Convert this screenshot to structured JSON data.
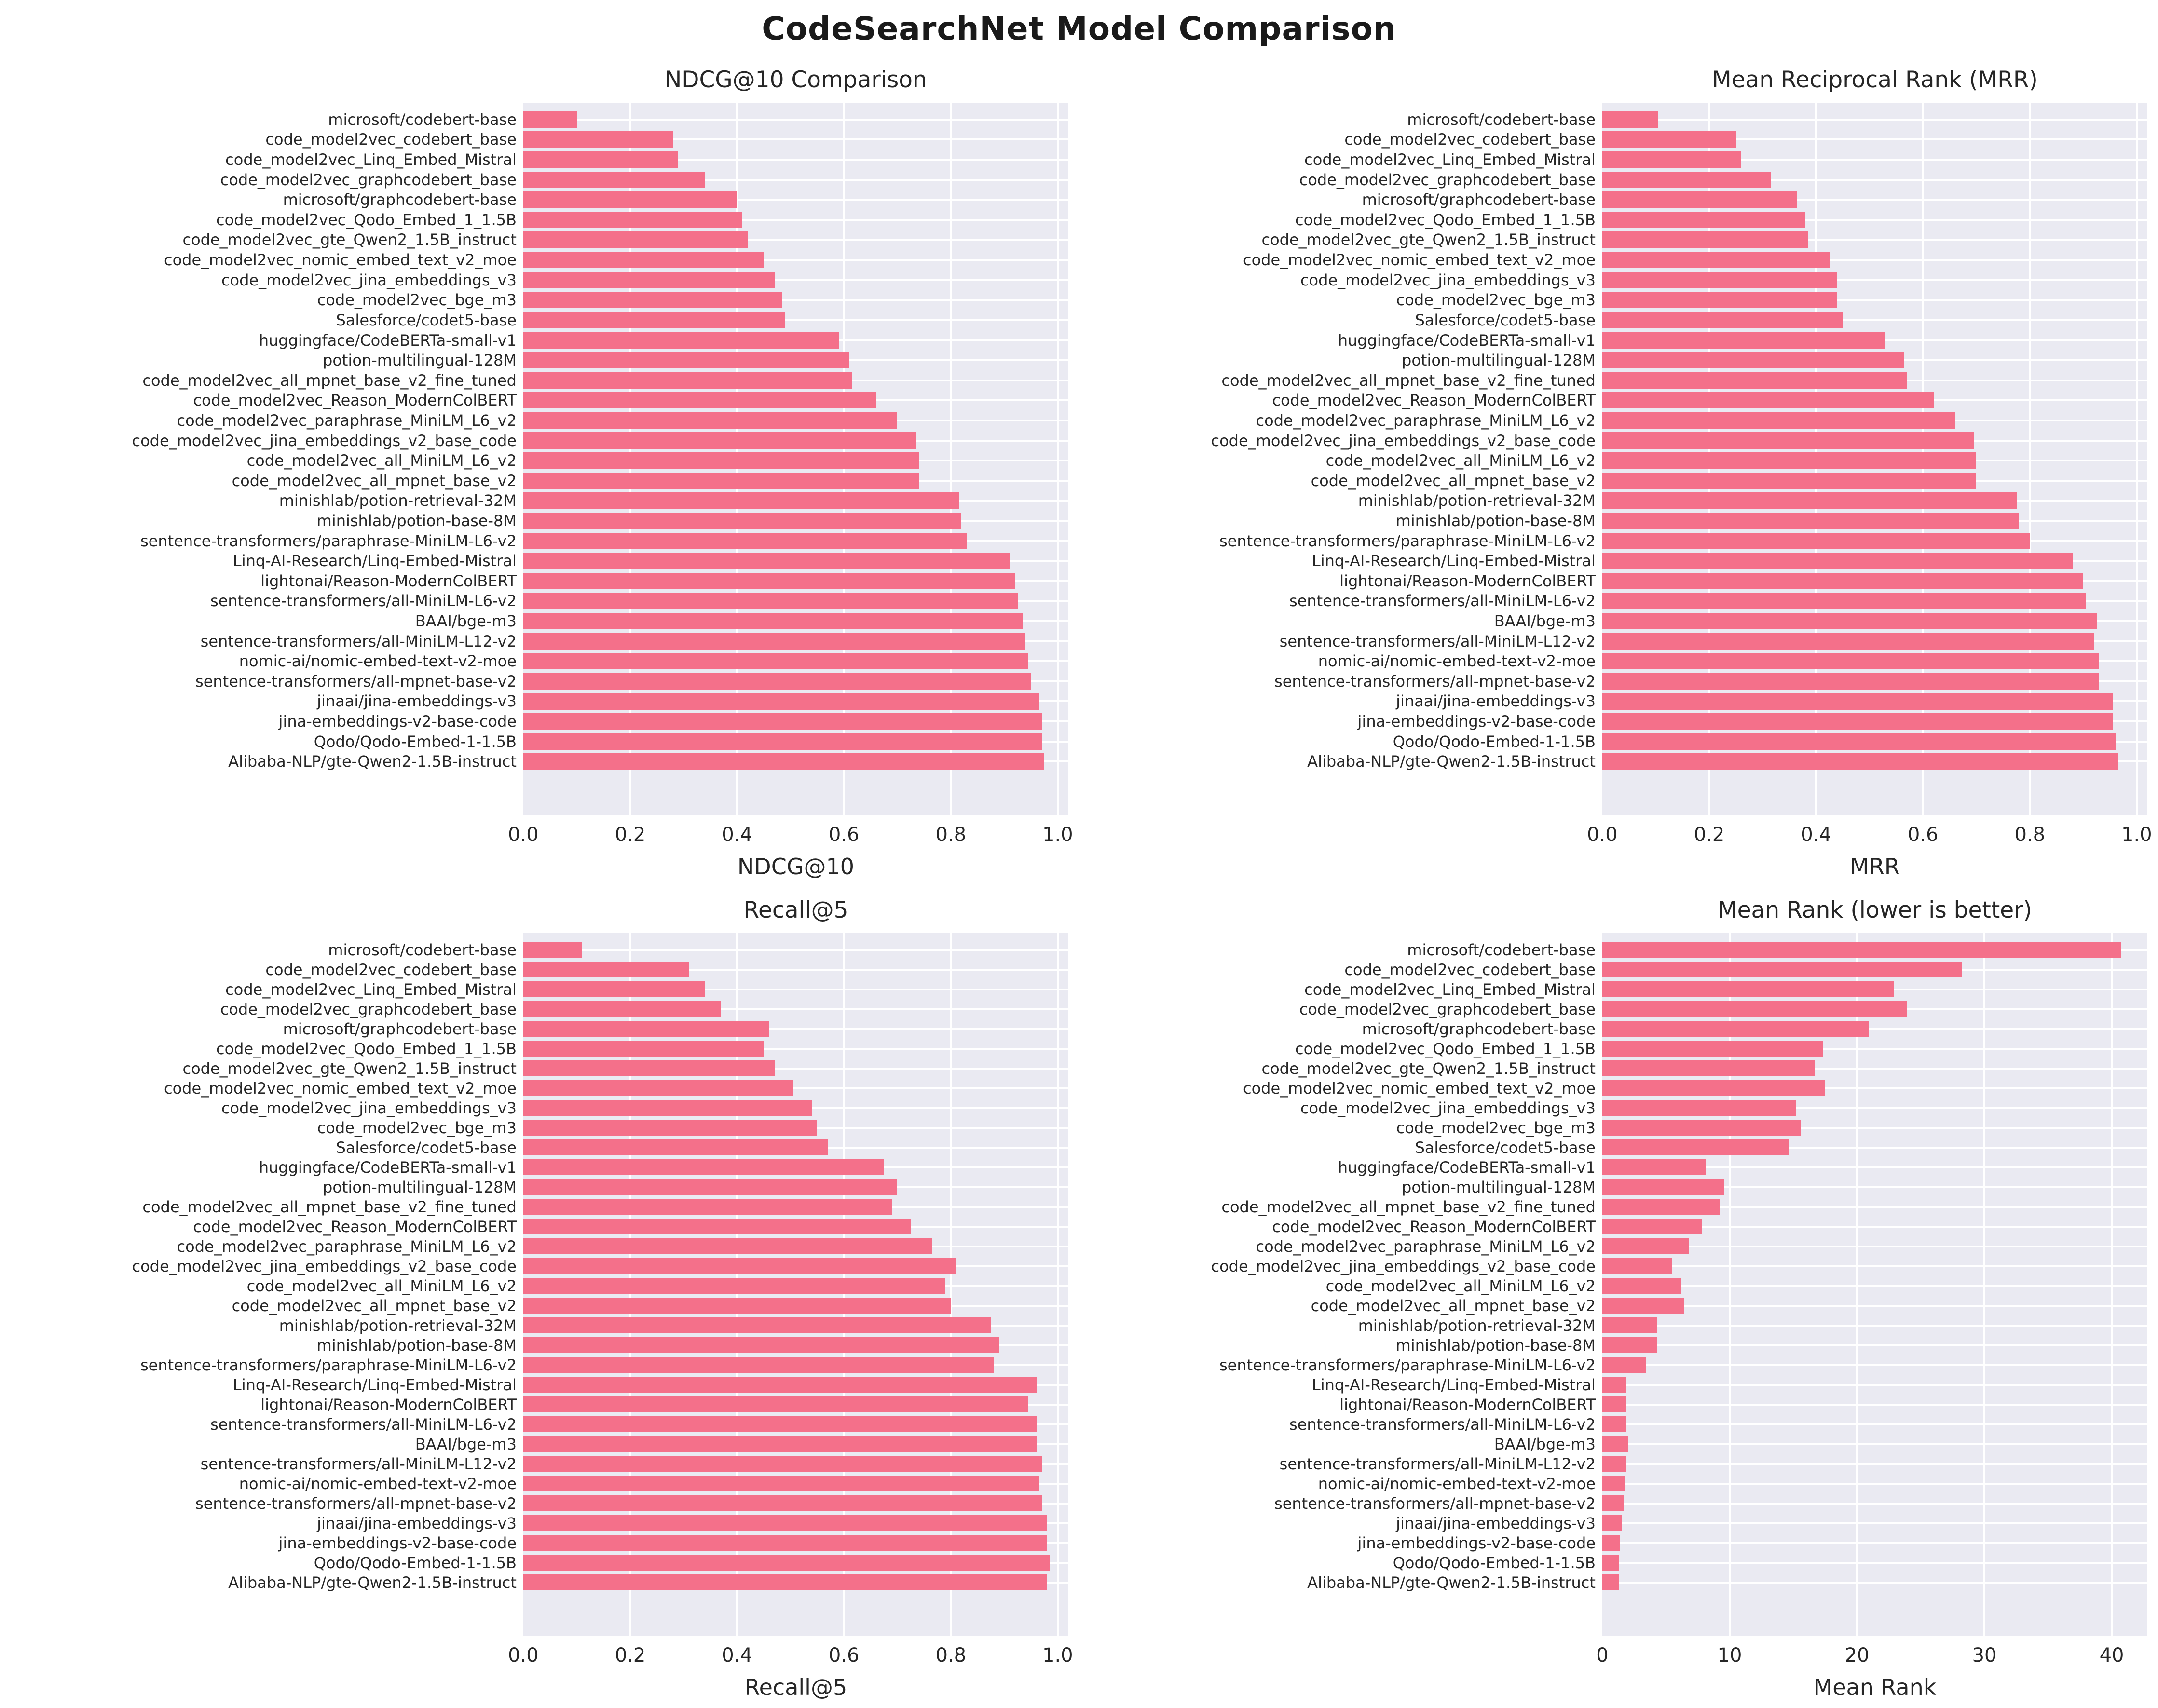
{
  "title": "CodeSearchNet Model Comparison",
  "colors": {
    "bar": "#f4708a",
    "plot_background": "#eaeaf2",
    "gridline": "#ffffff",
    "text": "#262626",
    "title_text": "#1a1a1a",
    "figure_background": "#ffffff"
  },
  "models": [
    "microsoft/codebert-base",
    "code_model2vec_codebert_base",
    "code_model2vec_Linq_Embed_Mistral",
    "code_model2vec_graphcodebert_base",
    "microsoft/graphcodebert-base",
    "code_model2vec_Qodo_Embed_1_1.5B",
    "code_model2vec_gte_Qwen2_1.5B_instruct",
    "code_model2vec_nomic_embed_text_v2_moe",
    "code_model2vec_jina_embeddings_v3",
    "code_model2vec_bge_m3",
    "Salesforce/codet5-base",
    "huggingface/CodeBERTa-small-v1",
    "potion-multilingual-128M",
    "code_model2vec_all_mpnet_base_v2_fine_tuned",
    "code_model2vec_Reason_ModernColBERT",
    "code_model2vec_paraphrase_MiniLM_L6_v2",
    "code_model2vec_jina_embeddings_v2_base_code",
    "code_model2vec_all_MiniLM_L6_v2",
    "code_model2vec_all_mpnet_base_v2",
    "minishlab/potion-retrieval-32M",
    "minishlab/potion-base-8M",
    "sentence-transformers/paraphrase-MiniLM-L6-v2",
    "Linq-AI-Research/Linq-Embed-Mistral",
    "lightonai/Reason-ModernColBERT",
    "sentence-transformers/all-MiniLM-L6-v2",
    "BAAI/bge-m3",
    "sentence-transformers/all-MiniLM-L12-v2",
    "nomic-ai/nomic-embed-text-v2-moe",
    "sentence-transformers/all-mpnet-base-v2",
    "jinaai/jina-embeddings-v3",
    "jina-embeddings-v2-base-code",
    "Qodo/Qodo-Embed-1-1.5B",
    "Alibaba-NLP/gte-Qwen2-1.5B-instruct"
  ],
  "chart_data": [
    {
      "type": "bar",
      "orientation": "horizontal",
      "title": "NDCG@10 Comparison",
      "xlabel": "NDCG@10",
      "xlim": [
        0,
        1.02
      ],
      "xticks": [
        0,
        0.2,
        0.4,
        0.6,
        0.8,
        1.0
      ],
      "xtick_labels": [
        "0.0",
        "0.2",
        "0.4",
        "0.6",
        "0.8",
        "1.0"
      ],
      "grid": true,
      "legend": false,
      "categories": [
        "microsoft/codebert-base",
        "code_model2vec_codebert_base",
        "code_model2vec_Linq_Embed_Mistral",
        "code_model2vec_graphcodebert_base",
        "microsoft/graphcodebert-base",
        "code_model2vec_Qodo_Embed_1_1.5B",
        "code_model2vec_gte_Qwen2_1.5B_instruct",
        "code_model2vec_nomic_embed_text_v2_moe",
        "code_model2vec_jina_embeddings_v3",
        "code_model2vec_bge_m3",
        "Salesforce/codet5-base",
        "huggingface/CodeBERTa-small-v1",
        "potion-multilingual-128M",
        "code_model2vec_all_mpnet_base_v2_fine_tuned",
        "code_model2vec_Reason_ModernColBERT",
        "code_model2vec_paraphrase_MiniLM_L6_v2",
        "code_model2vec_jina_embeddings_v2_base_code",
        "code_model2vec_all_MiniLM_L6_v2",
        "code_model2vec_all_mpnet_base_v2",
        "minishlab/potion-retrieval-32M",
        "minishlab/potion-base-8M",
        "sentence-transformers/paraphrase-MiniLM-L6-v2",
        "Linq-AI-Research/Linq-Embed-Mistral",
        "lightonai/Reason-ModernColBERT",
        "sentence-transformers/all-MiniLM-L6-v2",
        "BAAI/bge-m3",
        "sentence-transformers/all-MiniLM-L12-v2",
        "nomic-ai/nomic-embed-text-v2-moe",
        "sentence-transformers/all-mpnet-base-v2",
        "jinaai/jina-embeddings-v3",
        "jina-embeddings-v2-base-code",
        "Qodo/Qodo-Embed-1-1.5B",
        "Alibaba-NLP/gte-Qwen2-1.5B-instruct"
      ],
      "values": [
        0.1,
        0.28,
        0.29,
        0.34,
        0.4,
        0.41,
        0.42,
        0.45,
        0.47,
        0.485,
        0.49,
        0.59,
        0.61,
        0.615,
        0.66,
        0.7,
        0.735,
        0.74,
        0.74,
        0.815,
        0.82,
        0.83,
        0.91,
        0.92,
        0.925,
        0.935,
        0.94,
        0.945,
        0.95,
        0.965,
        0.97,
        0.97,
        0.975
      ]
    },
    {
      "type": "bar",
      "orientation": "horizontal",
      "title": "Mean Reciprocal Rank (MRR)",
      "xlabel": "MRR",
      "xlim": [
        0,
        1.02
      ],
      "xticks": [
        0,
        0.2,
        0.4,
        0.6,
        0.8,
        1.0
      ],
      "xtick_labels": [
        "0.0",
        "0.2",
        "0.4",
        "0.6",
        "0.8",
        "1.0"
      ],
      "grid": true,
      "legend": false,
      "categories": [
        "microsoft/codebert-base",
        "code_model2vec_codebert_base",
        "code_model2vec_Linq_Embed_Mistral",
        "code_model2vec_graphcodebert_base",
        "microsoft/graphcodebert-base",
        "code_model2vec_Qodo_Embed_1_1.5B",
        "code_model2vec_gte_Qwen2_1.5B_instruct",
        "code_model2vec_nomic_embed_text_v2_moe",
        "code_model2vec_jina_embeddings_v3",
        "code_model2vec_bge_m3",
        "Salesforce/codet5-base",
        "huggingface/CodeBERTa-small-v1",
        "potion-multilingual-128M",
        "code_model2vec_all_mpnet_base_v2_fine_tuned",
        "code_model2vec_Reason_ModernColBERT",
        "code_model2vec_paraphrase_MiniLM_L6_v2",
        "code_model2vec_jina_embeddings_v2_base_code",
        "code_model2vec_all_MiniLM_L6_v2",
        "code_model2vec_all_mpnet_base_v2",
        "minishlab/potion-retrieval-32M",
        "minishlab/potion-base-8M",
        "sentence-transformers/paraphrase-MiniLM-L6-v2",
        "Linq-AI-Research/Linq-Embed-Mistral",
        "lightonai/Reason-ModernColBERT",
        "sentence-transformers/all-MiniLM-L6-v2",
        "BAAI/bge-m3",
        "sentence-transformers/all-MiniLM-L12-v2",
        "nomic-ai/nomic-embed-text-v2-moe",
        "sentence-transformers/all-mpnet-base-v2",
        "jinaai/jina-embeddings-v3",
        "jina-embeddings-v2-base-code",
        "Qodo/Qodo-Embed-1-1.5B",
        "Alibaba-NLP/gte-Qwen2-1.5B-instruct"
      ],
      "values": [
        0.105,
        0.25,
        0.26,
        0.315,
        0.365,
        0.38,
        0.385,
        0.425,
        0.44,
        0.44,
        0.45,
        0.53,
        0.565,
        0.57,
        0.62,
        0.66,
        0.695,
        0.7,
        0.7,
        0.775,
        0.78,
        0.8,
        0.88,
        0.9,
        0.905,
        0.925,
        0.92,
        0.93,
        0.93,
        0.955,
        0.955,
        0.96,
        0.965
      ]
    },
    {
      "type": "bar",
      "orientation": "horizontal",
      "title": "Recall@5",
      "xlabel": "Recall@5",
      "xlim": [
        0,
        1.02
      ],
      "xticks": [
        0,
        0.2,
        0.4,
        0.6,
        0.8,
        1.0
      ],
      "xtick_labels": [
        "0.0",
        "0.2",
        "0.4",
        "0.6",
        "0.8",
        "1.0"
      ],
      "grid": true,
      "legend": false,
      "categories": [
        "microsoft/codebert-base",
        "code_model2vec_codebert_base",
        "code_model2vec_Linq_Embed_Mistral",
        "code_model2vec_graphcodebert_base",
        "microsoft/graphcodebert-base",
        "code_model2vec_Qodo_Embed_1_1.5B",
        "code_model2vec_gte_Qwen2_1.5B_instruct",
        "code_model2vec_nomic_embed_text_v2_moe",
        "code_model2vec_jina_embeddings_v3",
        "code_model2vec_bge_m3",
        "Salesforce/codet5-base",
        "huggingface/CodeBERTa-small-v1",
        "potion-multilingual-128M",
        "code_model2vec_all_mpnet_base_v2_fine_tuned",
        "code_model2vec_Reason_ModernColBERT",
        "code_model2vec_paraphrase_MiniLM_L6_v2",
        "code_model2vec_jina_embeddings_v2_base_code",
        "code_model2vec_all_MiniLM_L6_v2",
        "code_model2vec_all_mpnet_base_v2",
        "minishlab/potion-retrieval-32M",
        "minishlab/potion-base-8M",
        "sentence-transformers/paraphrase-MiniLM-L6-v2",
        "Linq-AI-Research/Linq-Embed-Mistral",
        "lightonai/Reason-ModernColBERT",
        "sentence-transformers/all-MiniLM-L6-v2",
        "BAAI/bge-m3",
        "sentence-transformers/all-MiniLM-L12-v2",
        "nomic-ai/nomic-embed-text-v2-moe",
        "sentence-transformers/all-mpnet-base-v2",
        "jinaai/jina-embeddings-v3",
        "jina-embeddings-v2-base-code",
        "Qodo/Qodo-Embed-1-1.5B",
        "Alibaba-NLP/gte-Qwen2-1.5B-instruct"
      ],
      "values": [
        0.11,
        0.31,
        0.34,
        0.37,
        0.46,
        0.45,
        0.47,
        0.505,
        0.54,
        0.55,
        0.57,
        0.675,
        0.7,
        0.69,
        0.725,
        0.765,
        0.81,
        0.79,
        0.8,
        0.875,
        0.89,
        0.88,
        0.96,
        0.945,
        0.96,
        0.96,
        0.97,
        0.965,
        0.97,
        0.98,
        0.98,
        0.985,
        0.98
      ]
    },
    {
      "type": "bar",
      "orientation": "horizontal",
      "title": "Mean Rank (lower is better)",
      "xlabel": "Mean Rank",
      "xlim": [
        0,
        42.8
      ],
      "xticks": [
        0,
        10,
        20,
        30,
        40
      ],
      "xtick_labels": [
        "0",
        "10",
        "20",
        "30",
        "40"
      ],
      "grid": true,
      "legend": false,
      "categories": [
        "microsoft/codebert-base",
        "code_model2vec_codebert_base",
        "code_model2vec_Linq_Embed_Mistral",
        "code_model2vec_graphcodebert_base",
        "microsoft/graphcodebert-base",
        "code_model2vec_Qodo_Embed_1_1.5B",
        "code_model2vec_gte_Qwen2_1.5B_instruct",
        "code_model2vec_nomic_embed_text_v2_moe",
        "code_model2vec_jina_embeddings_v3",
        "code_model2vec_bge_m3",
        "Salesforce/codet5-base",
        "huggingface/CodeBERTa-small-v1",
        "potion-multilingual-128M",
        "code_model2vec_all_mpnet_base_v2_fine_tuned",
        "code_model2vec_Reason_ModernColBERT",
        "code_model2vec_paraphrase_MiniLM_L6_v2",
        "code_model2vec_jina_embeddings_v2_base_code",
        "code_model2vec_all_MiniLM_L6_v2",
        "code_model2vec_all_mpnet_base_v2",
        "minishlab/potion-retrieval-32M",
        "minishlab/potion-base-8M",
        "sentence-transformers/paraphrase-MiniLM-L6-v2",
        "Linq-AI-Research/Linq-Embed-Mistral",
        "lightonai/Reason-ModernColBERT",
        "sentence-transformers/all-MiniLM-L6-v2",
        "BAAI/bge-m3",
        "sentence-transformers/all-MiniLM-L12-v2",
        "nomic-ai/nomic-embed-text-v2-moe",
        "sentence-transformers/all-mpnet-base-v2",
        "jinaai/jina-embeddings-v3",
        "jina-embeddings-v2-base-code",
        "Qodo/Qodo-Embed-1-1.5B",
        "Alibaba-NLP/gte-Qwen2-1.5B-instruct"
      ],
      "values": [
        40.7,
        28.2,
        22.9,
        23.9,
        20.9,
        17.3,
        16.7,
        17.5,
        15.2,
        15.6,
        14.7,
        8.1,
        9.6,
        9.2,
        7.8,
        6.8,
        5.5,
        6.2,
        6.4,
        4.3,
        4.3,
        3.4,
        1.9,
        1.9,
        1.9,
        2.0,
        1.9,
        1.8,
        1.7,
        1.5,
        1.4,
        1.3,
        1.3
      ]
    }
  ]
}
